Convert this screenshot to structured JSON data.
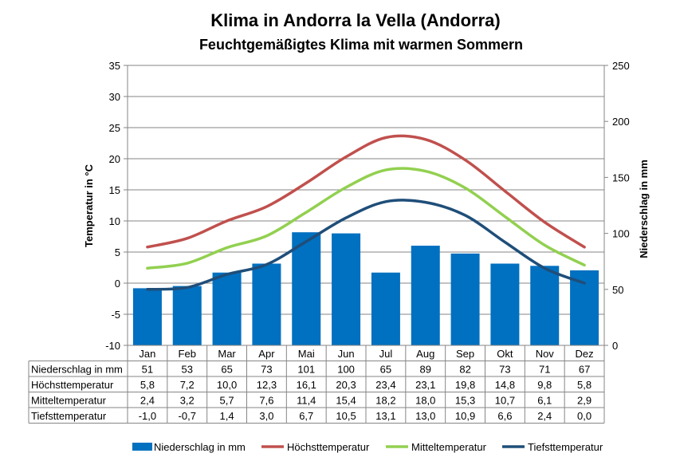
{
  "chart_data": {
    "type": "bar+line",
    "title": "Klima in Andorra la Vella (Andorra)",
    "subtitle": "Feuchtgemäßigtes Klima mit warmen Sommern",
    "categories": [
      "Jan",
      "Feb",
      "Mar",
      "Apr",
      "Mai",
      "Jun",
      "Jul",
      "Aug",
      "Sep",
      "Okt",
      "Nov",
      "Dez"
    ],
    "ylabel_left": "Temperatur in °C",
    "ylabel_right": "Niederschlag in mm",
    "ylim_left": [
      -10,
      35
    ],
    "ylim_right": [
      0,
      250
    ],
    "yticks_left": [
      "-10",
      "-5",
      "0",
      "5",
      "10",
      "15",
      "20",
      "25",
      "30",
      "35"
    ],
    "yticks_right": [
      "0",
      "50",
      "100",
      "150",
      "200",
      "250"
    ],
    "grid": "horizontal",
    "bar_series": {
      "name": "Niederschlag in mm",
      "color": "#0070C0",
      "axis": "right",
      "values": [
        51,
        53,
        65,
        73,
        101,
        100,
        65,
        89,
        82,
        73,
        71,
        67
      ],
      "labels": [
        "51",
        "53",
        "65",
        "73",
        "101",
        "100",
        "65",
        "89",
        "82",
        "73",
        "71",
        "67"
      ]
    },
    "line_series": [
      {
        "name": "Höchsttemperatur",
        "color": "#C0504D",
        "axis": "left",
        "values": [
          5.8,
          7.2,
          10.0,
          12.3,
          16.1,
          20.3,
          23.4,
          23.1,
          19.8,
          14.8,
          9.8,
          5.8
        ],
        "labels": [
          "5,8",
          "7,2",
          "10,0",
          "12,3",
          "16,1",
          "20,3",
          "23,4",
          "23,1",
          "19,8",
          "14,8",
          "9,8",
          "5,8"
        ]
      },
      {
        "name": "Mitteltemperatur",
        "color": "#92D050",
        "axis": "left",
        "values": [
          2.4,
          3.2,
          5.7,
          7.6,
          11.4,
          15.4,
          18.2,
          18.0,
          15.3,
          10.7,
          6.1,
          2.9
        ],
        "labels": [
          "2,4",
          "3,2",
          "5,7",
          "7,6",
          "11,4",
          "15,4",
          "18,2",
          "18,0",
          "15,3",
          "10,7",
          "6,1",
          "2,9"
        ]
      },
      {
        "name": "Tiefsttemperatur",
        "color": "#1F4E79",
        "axis": "left",
        "values": [
          -1.0,
          -0.7,
          1.4,
          3.0,
          6.7,
          10.5,
          13.1,
          13.0,
          10.9,
          6.6,
          2.4,
          0.0
        ],
        "labels": [
          "-1,0",
          "-0,7",
          "1,4",
          "3,0",
          "6,7",
          "10,5",
          "13,1",
          "13,0",
          "10,9",
          "6,6",
          "2,4",
          "0,0"
        ]
      }
    ],
    "legend_position": "bottom"
  }
}
